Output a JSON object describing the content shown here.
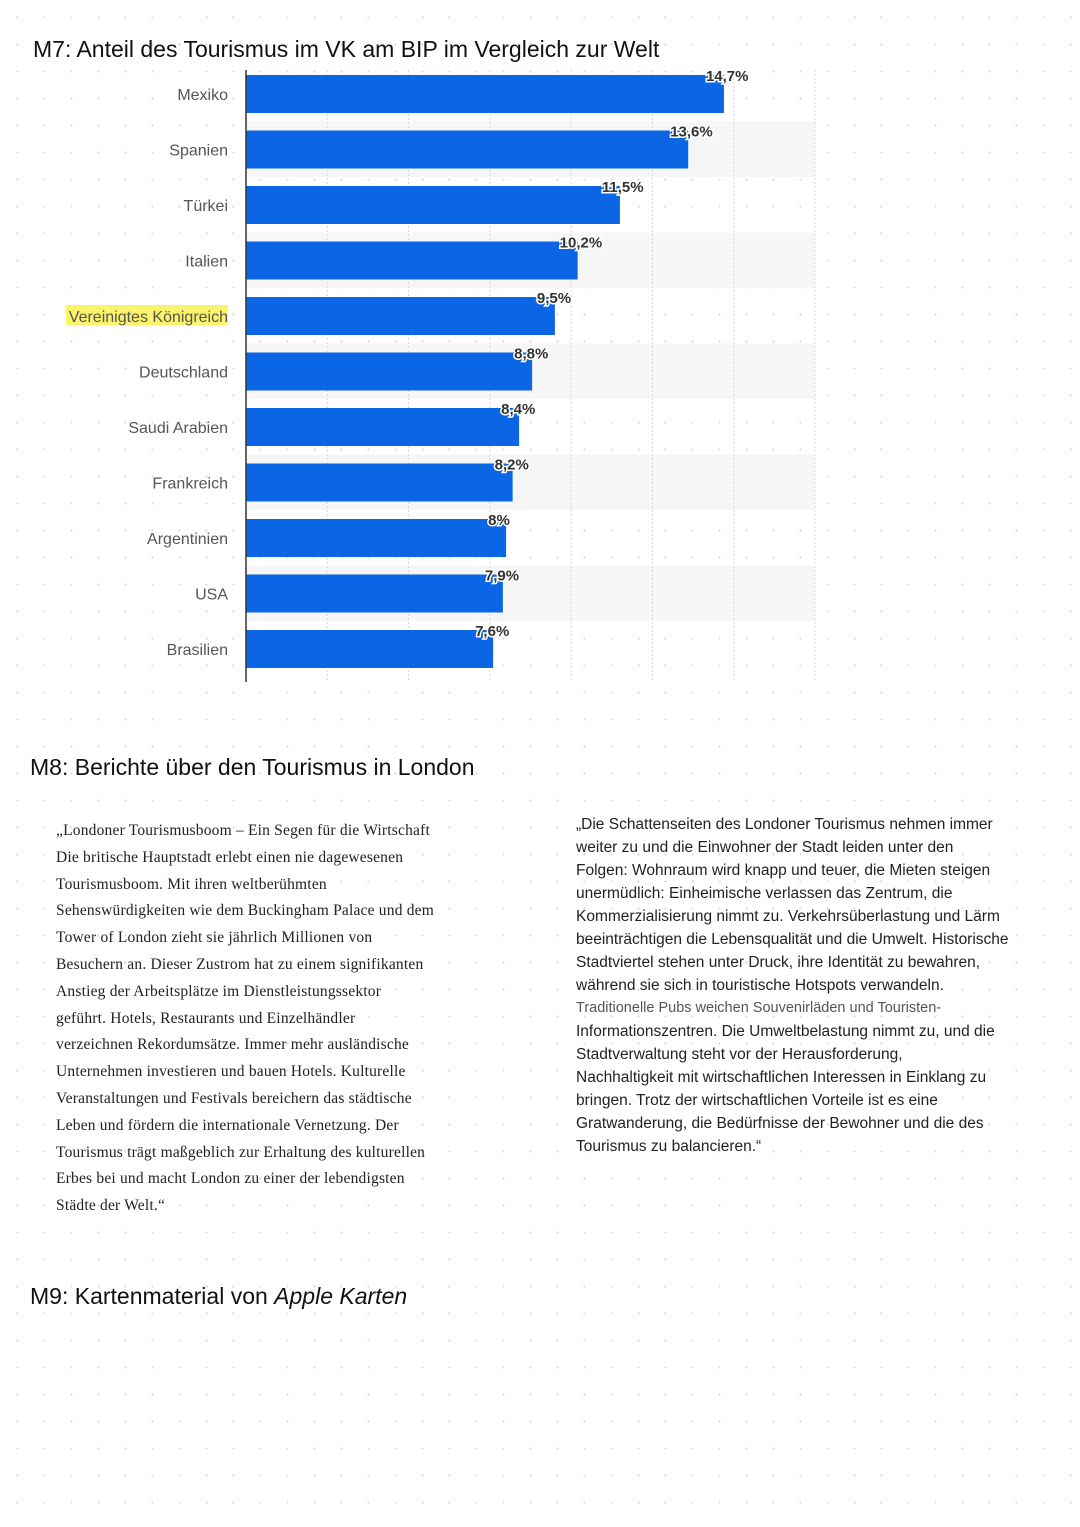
{
  "m7": {
    "title": "M7: Anteil des Tourismus im VK am BIP im Vergleich zur Welt"
  },
  "chart_data": {
    "type": "bar",
    "orientation": "horizontal",
    "title": "M7: Anteil des Tourismus im VK am BIP im Vergleich zur Welt",
    "categories": [
      "Mexiko",
      "Spanien",
      "Türkei",
      "Italien",
      "Vereinigtes Königreich",
      "Deutschland",
      "Saudi Arabien",
      "Frankreich",
      "Argentinien",
      "USA",
      "Brasilien"
    ],
    "values": [
      14.7,
      13.6,
      11.5,
      10.2,
      9.5,
      8.8,
      8.4,
      8.2,
      8,
      7.9,
      7.6
    ],
    "data_labels": [
      "14,7%",
      "13,6%",
      "11,5%",
      "10,2%",
      "9,5%",
      "8,8%",
      "8,4%",
      "8,2%",
      "8%",
      "7,9%",
      "7,6%"
    ],
    "unit": "%",
    "xlim": [
      0,
      17.5
    ],
    "grid": true,
    "highlighted_category": "Vereinigtes Königreich",
    "colors": {
      "bar": "#0a66e4",
      "highlight": "#fbf36a",
      "row_alt": "#f6f6f6"
    }
  },
  "m8": {
    "title": "M8: Berichte über den Tourismus in London",
    "left_lines": [
      "„Londoner Tourismusboom – Ein Segen für die Wirtschaft",
      "Die britische Hauptstadt erlebt einen nie dagewesenen",
      "Tourismusboom. Mit ihren weltberühmten",
      "Sehenswürdigkeiten wie dem Buckingham Palace und dem",
      "Tower of London zieht sie jährlich Millionen von",
      "Besuchern an. Dieser Zustrom hat zu einem signifikanten",
      "Anstieg der Arbeitsplätze im Dienstleistungssektor",
      "geführt. Hotels, Restaurants und Einzelhändler",
      "verzeichnen Rekordumsätze. Immer mehr ausländische",
      "Unternehmen investieren und bauen Hotels. Kulturelle",
      "Veranstaltungen und Festivals bereichern das städtische",
      "Leben und fördern die internationale Vernetzung. Der",
      "Tourismus trägt maßgeblich zur Erhaltung des kulturellen",
      "Erbes bei und macht London zu einer der lebendigsten",
      "Städte der Welt.“"
    ],
    "right_lines": [
      "„Die Schattenseiten des Londoner Tourismus nehmen immer",
      "weiter zu und die Einwohner der Stadt leiden unter den",
      "Folgen: Wohnraum wird knapp und teuer, die Mieten steigen",
      "unermüdlich: Einheimische verlassen das Zentrum, die",
      "Kommerzialisierung nimmt zu. Verkehrsüberlastung und Lärm",
      "beeinträchtigen die Lebensqualität und die Umwelt. Historische",
      "Stadtviertel stehen unter Druck, ihre Identität zu bewahren,",
      "während sie sich in touristische Hotspots verwandeln.",
      "Traditionelle Pubs weichen Souvenirläden und Touristen-",
      "Informationszentren. Die Umweltbelastung nimmt zu, und die",
      "Stadtverwaltung steht vor der Herausforderung,",
      "Nachhaltigkeit mit wirtschaftlichen Interessen in Einklang zu",
      "bringen. Trotz der wirtschaftlichen Vorteile ist es eine",
      "Gratwanderung, die Bedürfnisse der Bewohner und die des",
      "Tourismus zu balancieren.“"
    ]
  },
  "m9": {
    "title_prefix": "M9: Kartenmaterial von ",
    "title_italic": "Apple Karten"
  }
}
